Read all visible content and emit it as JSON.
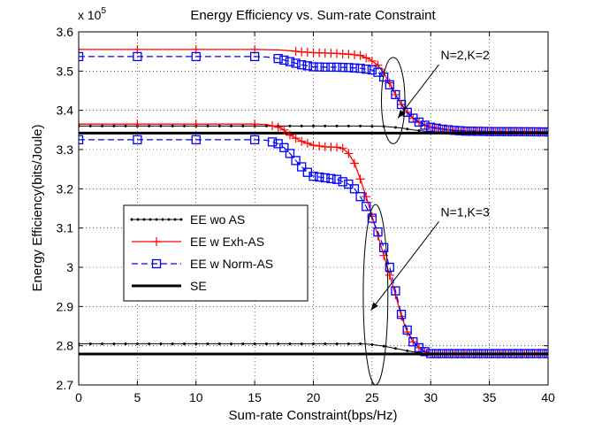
{
  "chart_data": {
    "type": "line",
    "title": "Energy Efficiency vs. Sum-rate Constraint",
    "xlabel": "Sum-rate Constraint(bps/Hz)",
    "ylabel": "Energy Efficiency(bits/Joule)",
    "multiplier_label": "x 10",
    "multiplier_exponent": "5",
    "xlim": [
      0,
      40
    ],
    "ylim": [
      2.7,
      3.6
    ],
    "x_ticks": [
      0,
      5,
      10,
      15,
      20,
      25,
      30,
      35,
      40
    ],
    "x_tick_labels": [
      "0",
      "5",
      "10",
      "15",
      "20",
      "25",
      "30",
      "35",
      "40"
    ],
    "y_ticks": [
      2.7,
      2.8,
      2.9,
      3.0,
      3.1,
      3.2,
      3.3,
      3.4,
      3.5,
      3.6
    ],
    "y_tick_labels": [
      "2.7",
      "2.8",
      "2.9",
      "3",
      "3.1",
      "3.2",
      "3.3",
      "3.4",
      "3.5",
      "3.6"
    ],
    "grid": true,
    "legend_position": "center-left",
    "legend": [
      {
        "label": "EE wo AS",
        "color": "#000000",
        "style": "solid-dot"
      },
      {
        "label": "EE w Exh-AS",
        "color": "#ff0000",
        "style": "solid-plus"
      },
      {
        "label": "EE w Norm-AS",
        "color": "#0000ff",
        "style": "dashed-square"
      },
      {
        "label": "SE",
        "color": "#000000",
        "style": "thick-solid"
      }
    ],
    "annotations": [
      {
        "text": "N=2,K=2",
        "ellipse_center": [
          26.8,
          3.425
        ],
        "ellipse_rx": 1.0,
        "ellipse_ry": 0.11,
        "arrow_to": [
          27.2,
          3.38
        ],
        "label_at": [
          31.0,
          3.53
        ]
      },
      {
        "text": "N=1,K=3",
        "ellipse_center": [
          25.3,
          2.93
        ],
        "ellipse_rx": 1.05,
        "ellipse_ry": 0.23,
        "arrow_to": [
          24.9,
          2.89
        ],
        "label_at": [
          31.0,
          3.13
        ]
      }
    ],
    "series": [
      {
        "name": "EE wo AS (N=2,K=2)",
        "legend_ref": 0,
        "x": [
          0,
          10,
          20,
          24,
          26,
          27.5,
          28.5,
          30,
          40
        ],
        "y": [
          3.36,
          3.36,
          3.36,
          3.36,
          3.359,
          3.355,
          3.35,
          3.345,
          3.345
        ]
      },
      {
        "name": "EE w Exh-AS (N=2,K=2)",
        "legend_ref": 1,
        "x": [
          0,
          5,
          10,
          15,
          17,
          18,
          19,
          20,
          21,
          22,
          23,
          24,
          24.8,
          25.5,
          26,
          26.5,
          27,
          27.5,
          28,
          28.5,
          29,
          29.5,
          30,
          31,
          32,
          33,
          35,
          40
        ],
        "y": [
          3.555,
          3.555,
          3.555,
          3.555,
          3.554,
          3.552,
          3.549,
          3.547,
          3.546,
          3.545,
          3.543,
          3.54,
          3.53,
          3.515,
          3.495,
          3.47,
          3.44,
          3.415,
          3.395,
          3.38,
          3.37,
          3.362,
          3.357,
          3.352,
          3.349,
          3.347,
          3.346,
          3.345
        ]
      },
      {
        "name": "EE w Norm-AS (N=2,K=2)",
        "legend_ref": 2,
        "x": [
          0,
          5,
          10,
          15,
          16,
          17,
          18,
          19,
          20,
          21,
          22,
          23,
          24,
          25,
          25.5,
          26,
          26.5,
          27,
          27.5,
          28,
          28.5,
          29,
          29.5,
          30,
          31,
          32,
          33,
          35,
          40
        ],
        "y": [
          3.537,
          3.537,
          3.537,
          3.537,
          3.536,
          3.532,
          3.524,
          3.516,
          3.511,
          3.51,
          3.51,
          3.509,
          3.507,
          3.503,
          3.497,
          3.485,
          3.465,
          3.44,
          3.415,
          3.395,
          3.38,
          3.37,
          3.362,
          3.357,
          3.352,
          3.349,
          3.347,
          3.346,
          3.345
        ]
      },
      {
        "name": "SE (N=2,K=2)",
        "legend_ref": 3,
        "x": [
          0,
          40
        ],
        "y": [
          3.342,
          3.342
        ]
      },
      {
        "name": "EE wo AS (N=1,K=3)",
        "legend_ref": 0,
        "x": [
          0,
          10,
          20,
          24,
          25,
          26,
          27,
          28,
          29,
          30,
          40
        ],
        "y": [
          2.805,
          2.805,
          2.805,
          2.805,
          2.803,
          2.799,
          2.793,
          2.787,
          2.782,
          2.78,
          2.78
        ]
      },
      {
        "name": "EE w Exh-AS (N=1,K=3)",
        "legend_ref": 1,
        "x": [
          0,
          5,
          10,
          15,
          16,
          17,
          17.5,
          18,
          19,
          20,
          21,
          22,
          22.5,
          23,
          23.5,
          24,
          24.5,
          25,
          25.5,
          26,
          26.5,
          27,
          27.5,
          28,
          28.5,
          29,
          29.5,
          30,
          40
        ],
        "y": [
          3.365,
          3.365,
          3.365,
          3.365,
          3.364,
          3.357,
          3.35,
          3.337,
          3.321,
          3.311,
          3.307,
          3.306,
          3.303,
          3.29,
          3.265,
          3.225,
          3.18,
          3.13,
          3.08,
          3.03,
          2.98,
          2.93,
          2.875,
          2.835,
          2.81,
          2.795,
          2.785,
          2.78,
          2.78
        ]
      },
      {
        "name": "EE w Norm-AS (N=1,K=3)",
        "legend_ref": 2,
        "x": [
          0,
          5,
          10,
          15,
          16,
          17,
          17.5,
          18,
          18.5,
          19,
          19.5,
          20,
          21,
          22,
          23,
          23.5,
          24,
          24.5,
          25,
          25.5,
          26,
          26.5,
          27,
          27.5,
          28,
          28.5,
          29,
          29.5,
          30,
          40
        ],
        "y": [
          3.325,
          3.325,
          3.325,
          3.325,
          3.324,
          3.315,
          3.305,
          3.29,
          3.272,
          3.256,
          3.242,
          3.232,
          3.228,
          3.224,
          3.212,
          3.2,
          3.18,
          3.155,
          3.125,
          3.09,
          3.05,
          3.0,
          2.94,
          2.88,
          2.84,
          2.81,
          2.795,
          2.785,
          2.78,
          2.78
        ]
      },
      {
        "name": "SE (N=1,K=3)",
        "legend_ref": 3,
        "x": [
          0,
          40
        ],
        "y": [
          2.779,
          2.779
        ]
      }
    ]
  }
}
